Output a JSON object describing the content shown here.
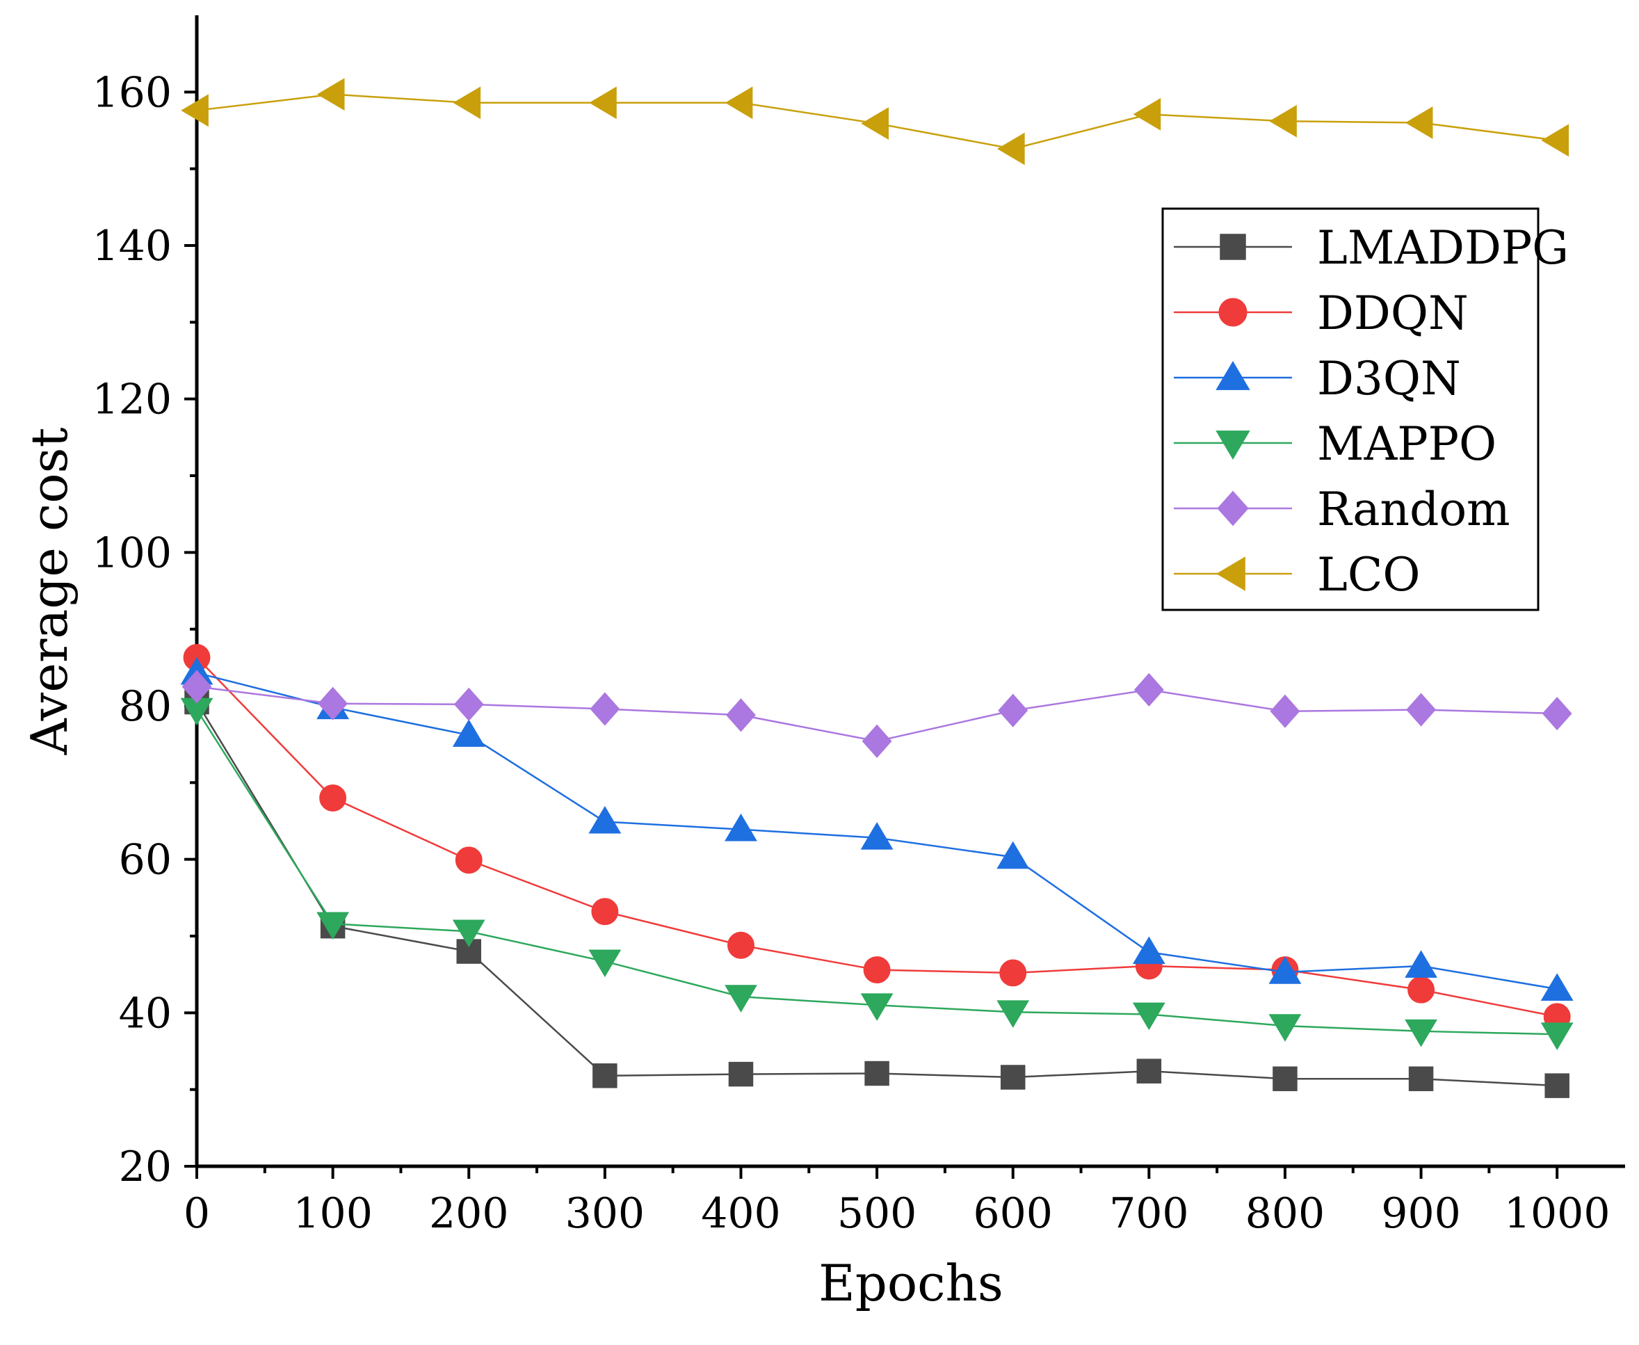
{
  "chart_data": {
    "type": "line",
    "title": "",
    "xlabel": "Epochs",
    "ylabel": "Average cost",
    "xlim": [
      0,
      1050
    ],
    "ylim": [
      20,
      170
    ],
    "xticks": [
      0,
      100,
      200,
      300,
      400,
      500,
      600,
      700,
      800,
      900,
      1000
    ],
    "yticks": [
      20,
      40,
      60,
      80,
      100,
      120,
      140,
      160
    ],
    "x": [
      0,
      100,
      200,
      300,
      400,
      500,
      600,
      700,
      800,
      900,
      1000
    ],
    "legend_position": "top-right",
    "grid": false,
    "series": [
      {
        "name": "LMADDPG",
        "color": "#4a4a4a",
        "marker": "square",
        "values": [
          80.5,
          51.3,
          48.0,
          31.8,
          32.0,
          32.1,
          31.6,
          32.4,
          31.4,
          31.4,
          30.5
        ]
      },
      {
        "name": "DDQN",
        "color": "#f03b3b",
        "marker": "circle",
        "values": [
          86.3,
          68.0,
          59.9,
          53.2,
          48.8,
          45.6,
          45.2,
          46.1,
          45.6,
          43.0,
          39.5
        ]
      },
      {
        "name": "D3QN",
        "color": "#1e6fe0",
        "marker": "triangle-up",
        "values": [
          84.3,
          79.8,
          76.2,
          64.9,
          63.9,
          62.8,
          60.3,
          47.9,
          45.3,
          46.1,
          43.1
        ]
      },
      {
        "name": "MAPPO",
        "color": "#2da85c",
        "marker": "triangle-down",
        "values": [
          79.5,
          51.6,
          50.6,
          46.7,
          42.1,
          41.0,
          40.1,
          39.8,
          38.3,
          37.6,
          37.2
        ]
      },
      {
        "name": "Random",
        "color": "#ab77e0",
        "marker": "diamond",
        "values": [
          82.5,
          80.3,
          80.2,
          79.6,
          78.8,
          75.4,
          79.4,
          82.1,
          79.3,
          79.5,
          79.0
        ]
      },
      {
        "name": "LCO",
        "color": "#c9a00c",
        "marker": "triangle-left",
        "values": [
          157.6,
          159.7,
          158.6,
          158.6,
          158.6,
          155.9,
          152.6,
          157.1,
          156.2,
          156.0,
          153.7
        ]
      }
    ]
  }
}
